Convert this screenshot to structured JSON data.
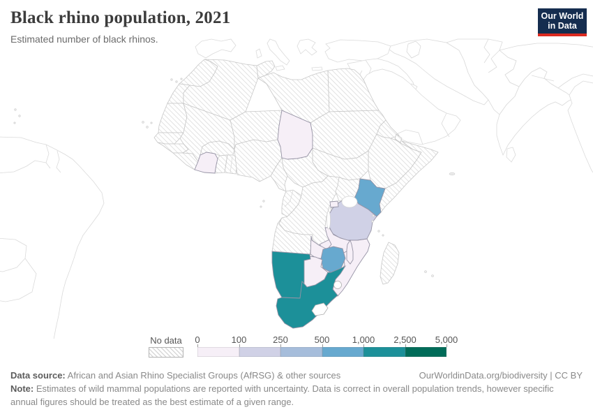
{
  "header": {
    "title": "Black rhino population, 2021",
    "subtitle": "Estimated number of black rhinos.",
    "logo": {
      "line1": "Our World",
      "line2": "in Data",
      "bg_color": "#152d4f",
      "accent_color": "#dc2a20"
    }
  },
  "legend": {
    "no_data_label": "No data",
    "tick_labels": [
      "0",
      "100",
      "250",
      "500",
      "1,000",
      "2,500",
      "5,000"
    ],
    "bins": [
      {
        "range": "0–100",
        "color": "#f6eff7"
      },
      {
        "range": "100–250",
        "color": "#d0d1e6"
      },
      {
        "range": "250–500",
        "color": "#a6bddb"
      },
      {
        "range": "500–1,000",
        "color": "#67a9cf"
      },
      {
        "range": "1,000–2,500",
        "color": "#1c9099"
      },
      {
        "range": "2,500–5,000",
        "color": "#016c59"
      }
    ]
  },
  "chart_data": {
    "type": "choropleth-map",
    "title": "Black rhino population, 2021",
    "unit": "black rhinos",
    "region_shown": "Africa (with surrounding continents unshaded)",
    "no_data_style": "diagonal hatching",
    "bins": [
      "0–100",
      "100–250",
      "250–500",
      "500–1,000",
      "1,000–2,500",
      "2,500–5,000"
    ],
    "countries": [
      {
        "id": "south-africa",
        "name": "South Africa",
        "bin_index": 4,
        "bin_range": "1,000–2,500"
      },
      {
        "id": "namibia",
        "name": "Namibia",
        "bin_index": 4,
        "bin_range": "1,000–2,500"
      },
      {
        "id": "kenya",
        "name": "Kenya",
        "bin_index": 3,
        "bin_range": "500–1,000"
      },
      {
        "id": "zimbabwe",
        "name": "Zimbabwe",
        "bin_index": 3,
        "bin_range": "500–1,000"
      },
      {
        "id": "tanzania",
        "name": "Tanzania",
        "bin_index": 1,
        "bin_range": "100–250"
      },
      {
        "id": "botswana",
        "name": "Botswana",
        "bin_index": 0,
        "bin_range": "0–100"
      },
      {
        "id": "zambia",
        "name": "Zambia",
        "bin_index": 0,
        "bin_range": "0–100"
      },
      {
        "id": "malawi",
        "name": "Malawi",
        "bin_index": 0,
        "bin_range": "0–100"
      },
      {
        "id": "mozambique",
        "name": "Mozambique",
        "bin_index": 0,
        "bin_range": "0–100"
      },
      {
        "id": "chad",
        "name": "Chad",
        "bin_index": 0,
        "bin_range": "0–100"
      },
      {
        "id": "cote-divoire",
        "name": "Cote d'Ivoire",
        "bin_index": 0,
        "bin_range": "0–100"
      },
      {
        "id": "rwanda",
        "name": "Rwanda",
        "bin_index": 0,
        "bin_range": "0–100"
      }
    ]
  },
  "footer": {
    "data_source_label": "Data source:",
    "data_source": " African and Asian Rhino Specialist Groups (AfRSG) & other sources",
    "link": "OurWorldinData.org/biodiversity | CC BY",
    "note_label": "Note:",
    "note": " Estimates of wild mammal populations are reported with uncertainty. Data is correct in overall population trends, however specific annual figures should be treated as the best estimate of a given range."
  }
}
